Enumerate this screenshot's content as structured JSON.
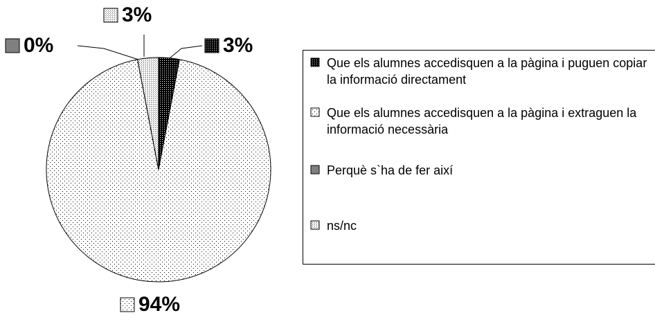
{
  "chart_data": {
    "type": "pie",
    "categories": [
      "Que els alumnes accedisquen a la pàgina i puguen copiar la informació directament",
      "Que els alumnes accedisquen a la pàgina i extraguen la informació necessària",
      "Perquè s`ha de fer així",
      "ns/nc"
    ],
    "values": [
      3,
      94,
      0,
      3
    ],
    "value_labels": [
      "3%",
      "94%",
      "0%",
      "3%"
    ]
  }
}
